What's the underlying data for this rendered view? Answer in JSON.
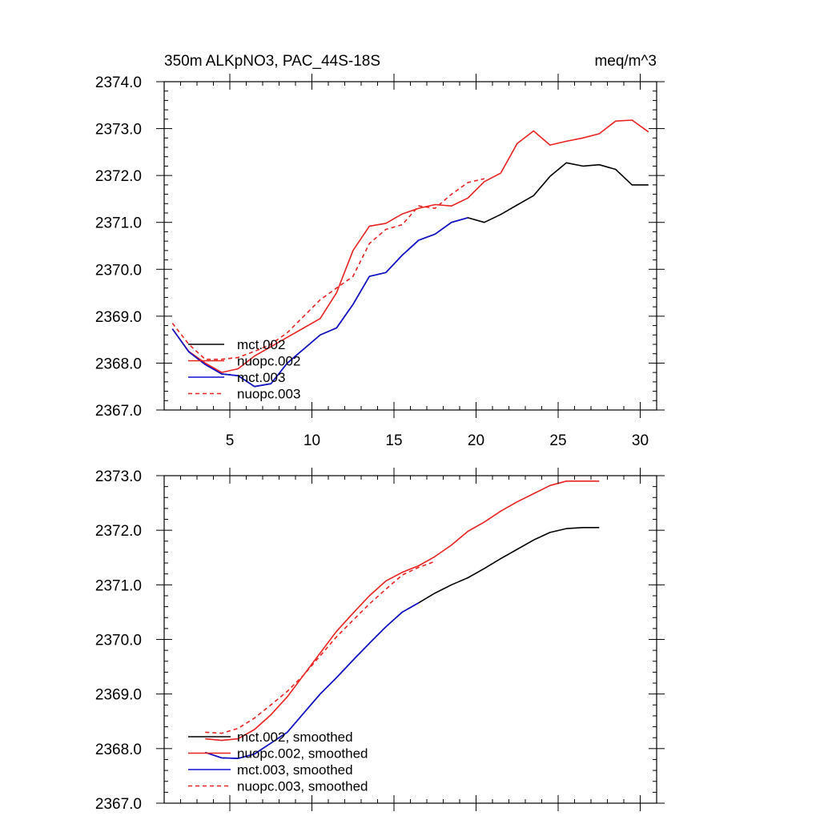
{
  "colors": {
    "mct002": "#000000",
    "nuopc002": "#e8221f",
    "mct003": "#1010d0",
    "nuopc003": "#e8221f"
  },
  "chart_data": [
    {
      "type": "line",
      "title_left": "350m ALKpNO3, PAC_44S-18S",
      "title_right": "meq/m^3",
      "xlim": [
        1,
        31
      ],
      "ylim": [
        2367.0,
        2374.0
      ],
      "x_ticks": [
        5,
        10,
        15,
        20,
        25,
        30
      ],
      "y_ticks": [
        "2367.0",
        "2368.0",
        "2369.0",
        "2370.0",
        "2371.0",
        "2372.0",
        "2373.0",
        "2374.0"
      ],
      "legend_position": "bottom-left",
      "series": [
        {
          "name": "mct.002",
          "style": "solid",
          "color": "#000000",
          "x": [
            1.5,
            2.5,
            3.5,
            4.5,
            5.5,
            6.5,
            7.5,
            8.5,
            9.5,
            10.5,
            11.5,
            12.5,
            13.5,
            14.5,
            15.5,
            16.5,
            17.5,
            18.5,
            19.5,
            20.5,
            21.5,
            22.5,
            23.5,
            24.5,
            25.5,
            26.5,
            27.5,
            28.5,
            29.5,
            30.5
          ],
          "values": [
            2368.73,
            2368.24,
            2367.97,
            2367.77,
            2367.73,
            2367.5,
            2367.56,
            2368.0,
            2368.3,
            2368.6,
            2368.75,
            2369.25,
            2369.85,
            2369.93,
            2370.3,
            2370.62,
            2370.75,
            2371.0,
            2371.1,
            2371.0,
            2371.17,
            2371.37,
            2371.57,
            2371.98,
            2372.27,
            2372.2,
            2372.23,
            2372.13,
            2371.8,
            2371.8
          ]
        },
        {
          "name": "nuopc.002",
          "style": "solid",
          "color": "#e8221f",
          "x": [
            1.5,
            2.5,
            3.5,
            4.5,
            5.5,
            6.5,
            7.5,
            8.5,
            9.5,
            10.5,
            11.5,
            12.5,
            13.5,
            14.5,
            15.5,
            16.5,
            17.5,
            18.5,
            19.5,
            20.5,
            21.5,
            22.5,
            23.5,
            24.5,
            25.5,
            26.5,
            27.5,
            28.5,
            29.5,
            30.5
          ],
          "values": [
            2368.73,
            2368.25,
            2368.0,
            2367.8,
            2367.88,
            2368.15,
            2368.35,
            2368.55,
            2368.75,
            2368.95,
            2369.5,
            2370.4,
            2370.92,
            2370.98,
            2371.18,
            2371.3,
            2371.38,
            2371.35,
            2371.52,
            2371.87,
            2372.05,
            2372.68,
            2372.95,
            2372.65,
            2372.73,
            2372.8,
            2372.89,
            2373.16,
            2373.18,
            2372.93
          ]
        },
        {
          "name": "mct.003",
          "style": "solid",
          "color": "#1010d0",
          "x": [
            1.5,
            2.5,
            3.5,
            4.5,
            5.5,
            6.5,
            7.5,
            8.5,
            9.5,
            10.5,
            11.5,
            12.5,
            13.5,
            14.5,
            15.5,
            16.5,
            17.5,
            18.5,
            19.5
          ],
          "values": [
            2368.73,
            2368.24,
            2367.97,
            2367.77,
            2367.73,
            2367.5,
            2367.56,
            2368.0,
            2368.3,
            2368.6,
            2368.75,
            2369.25,
            2369.85,
            2369.93,
            2370.3,
            2370.62,
            2370.75,
            2371.0,
            2371.1
          ]
        },
        {
          "name": "nuopc.003",
          "style": "dashed",
          "color": "#e8221f",
          "x": [
            1.5,
            2.5,
            3.5,
            4.5,
            5.5,
            6.5,
            7.5,
            8.5,
            9.5,
            10.5,
            11.5,
            12.5,
            13.5,
            14.5,
            15.5,
            16.5,
            17.5,
            18.5,
            19.5,
            20.5
          ],
          "values": [
            2368.85,
            2368.4,
            2368.08,
            2368.08,
            2368.12,
            2368.25,
            2368.4,
            2368.65,
            2369.0,
            2369.35,
            2369.6,
            2369.85,
            2370.55,
            2370.85,
            2370.95,
            2371.35,
            2371.3,
            2371.6,
            2371.85,
            2371.93
          ]
        }
      ]
    },
    {
      "type": "line",
      "xlim": [
        1,
        31
      ],
      "ylim": [
        2367.0,
        2373.0
      ],
      "x_ticks": [
        5,
        10,
        15,
        20,
        25,
        30
      ],
      "y_ticks": [
        "2367.0",
        "2368.0",
        "2369.0",
        "2370.0",
        "2371.0",
        "2372.0",
        "2373.0"
      ],
      "legend_position": "bottom-left",
      "series": [
        {
          "name": "mct.002, smoothed",
          "style": "solid",
          "color": "#000000",
          "x": [
            3.5,
            4.5,
            5.5,
            6.5,
            7.5,
            8.5,
            9.5,
            10.5,
            11.5,
            12.5,
            13.5,
            14.5,
            15.5,
            16.5,
            17.5,
            18.5,
            19.5,
            20.5,
            21.5,
            22.5,
            23.5,
            24.5,
            25.5,
            26.5,
            27.5
          ],
          "values": [
            2367.93,
            2367.83,
            2367.82,
            2367.9,
            2368.1,
            2368.3,
            2368.65,
            2369.0,
            2369.3,
            2369.62,
            2369.93,
            2370.23,
            2370.5,
            2370.67,
            2370.85,
            2371.0,
            2371.13,
            2371.3,
            2371.48,
            2371.65,
            2371.82,
            2371.96,
            2372.03,
            2372.05,
            2372.05
          ]
        },
        {
          "name": "nuopc.002, smoothed",
          "style": "solid",
          "color": "#e8221f",
          "x": [
            3.5,
            4.5,
            5.5,
            6.5,
            7.5,
            8.5,
            9.5,
            10.5,
            11.5,
            12.5,
            13.5,
            14.5,
            15.5,
            16.5,
            17.5,
            18.5,
            19.5,
            20.5,
            21.5,
            22.5,
            23.5,
            24.5,
            25.5,
            26.5,
            27.5
          ],
          "values": [
            2368.18,
            2368.15,
            2368.18,
            2368.35,
            2368.62,
            2368.95,
            2369.35,
            2369.75,
            2370.15,
            2370.48,
            2370.8,
            2371.07,
            2371.23,
            2371.35,
            2371.52,
            2371.73,
            2371.98,
            2372.15,
            2372.35,
            2372.52,
            2372.67,
            2372.82,
            2372.9,
            2372.9,
            2372.9
          ]
        },
        {
          "name": "mct.003, smoothed",
          "style": "solid",
          "color": "#1010d0",
          "x": [
            3.5,
            4.5,
            5.5,
            6.5,
            7.5,
            8.5,
            9.5,
            10.5,
            11.5,
            12.5,
            13.5,
            14.5,
            15.5,
            16.5
          ],
          "values": [
            2367.93,
            2367.83,
            2367.82,
            2367.9,
            2368.1,
            2368.3,
            2368.65,
            2369.0,
            2369.3,
            2369.62,
            2369.93,
            2370.23,
            2370.5,
            2370.67
          ]
        },
        {
          "name": "nuopc.003, smoothed",
          "style": "dashed",
          "color": "#e8221f",
          "x": [
            3.5,
            4.5,
            5.5,
            6.5,
            7.5,
            8.5,
            9.5,
            10.5,
            11.5,
            12.5,
            13.5,
            14.5,
            15.5,
            16.5,
            17.5
          ],
          "values": [
            2368.3,
            2368.28,
            2368.37,
            2368.56,
            2368.8,
            2369.05,
            2369.35,
            2369.7,
            2370.05,
            2370.35,
            2370.65,
            2370.92,
            2371.18,
            2371.32,
            2371.43
          ]
        }
      ]
    }
  ]
}
